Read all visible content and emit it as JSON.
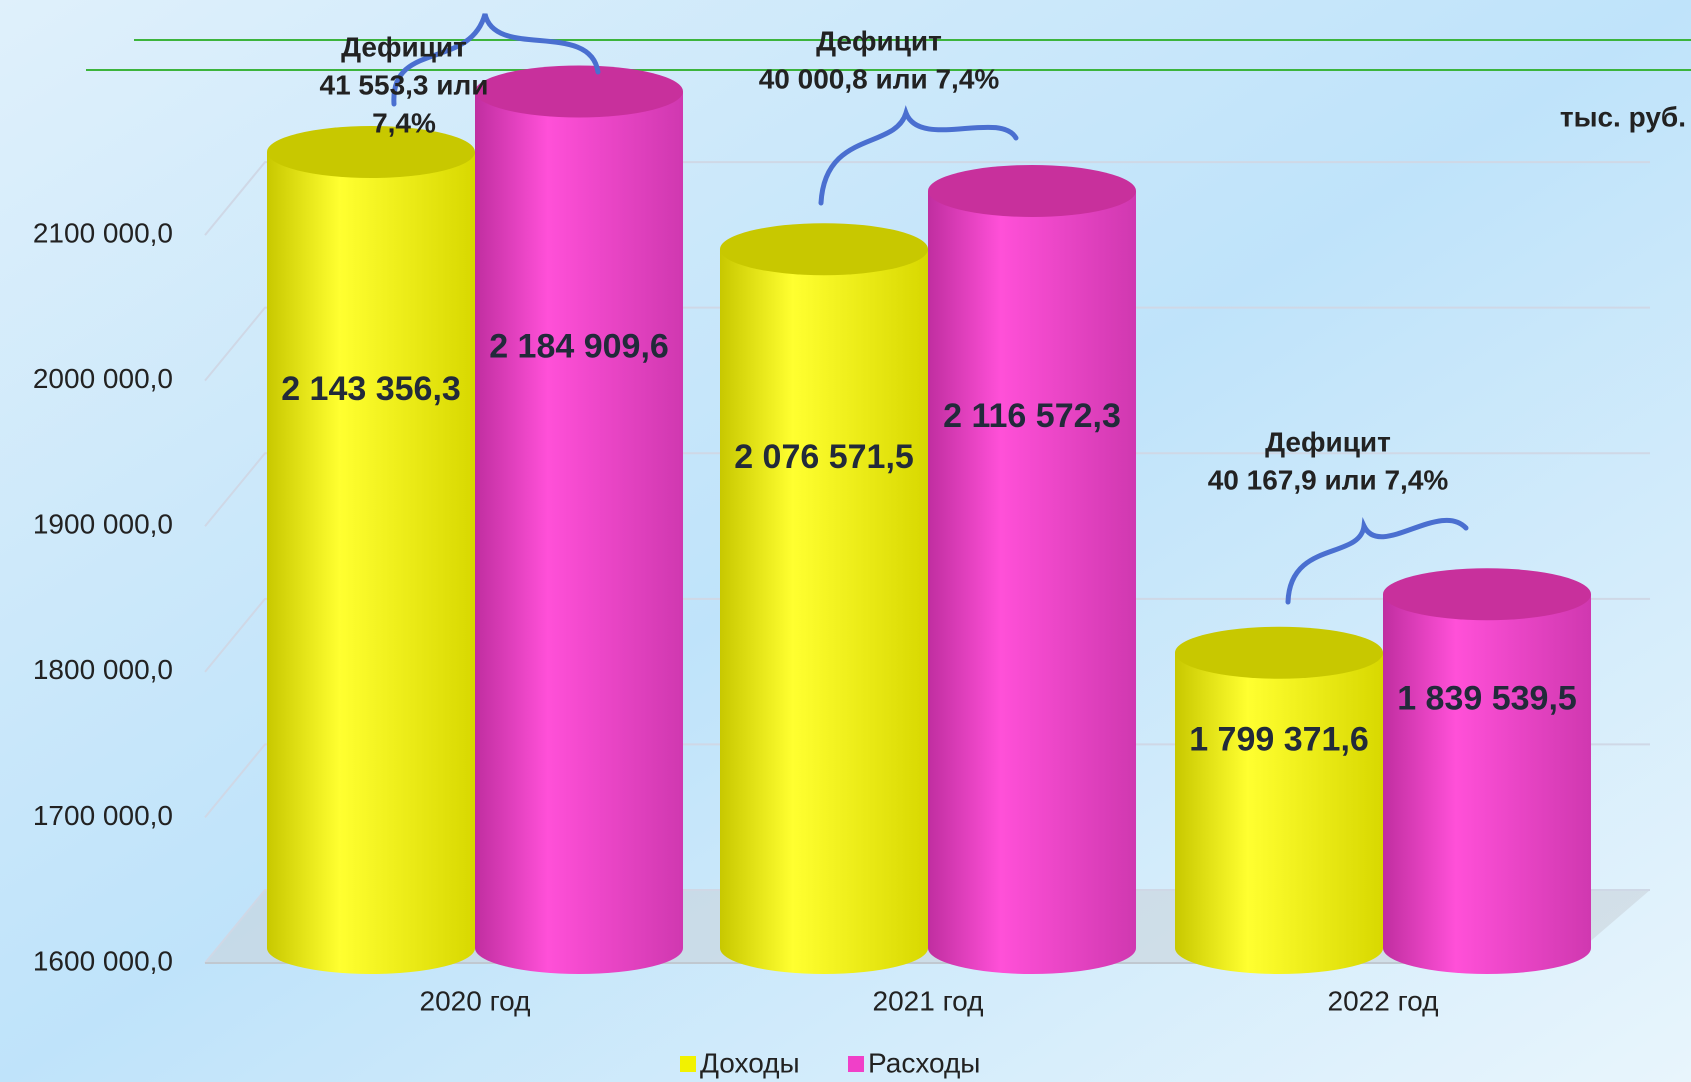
{
  "chart_data": {
    "type": "bar3d",
    "unit_label": "тыс. руб.",
    "categories": [
      "2020 год",
      "2021 год",
      "2022 год"
    ],
    "series": [
      {
        "name": "Доходы",
        "color": "#f2f200",
        "values": [
          2143356.3,
          2076571.5,
          1799371.6
        ],
        "value_labels": [
          "2 143 356,3",
          "2 076 571,5",
          "1 799 371,6"
        ]
      },
      {
        "name": "Расходы",
        "color": "#f040c8",
        "values": [
          2184909.6,
          2116572.3,
          1839539.5
        ],
        "value_labels": [
          "2 184 909,6",
          "2 116 572,3",
          "1 839 539,5"
        ]
      }
    ],
    "annotations": [
      [
        "Дефицит",
        "41 553,3 или",
        "7,4%"
      ],
      [
        "Дефицит",
        "40 000,8 или 7,4%"
      ],
      [
        "Дефицит",
        "40 167,9 или 7,4%"
      ]
    ],
    "ylim": [
      1600000,
      2200000
    ],
    "yticks": [
      {
        "value": 1600000,
        "label": "1600 000,0"
      },
      {
        "value": 1700000,
        "label": "1700 000,0"
      },
      {
        "value": 1800000,
        "label": "1800 000,0"
      },
      {
        "value": 1900000,
        "label": "1900 000,0"
      },
      {
        "value": 2000000,
        "label": "2000 000,0"
      },
      {
        "value": 2100000,
        "label": "2100 000,0"
      }
    ],
    "grid": true
  }
}
